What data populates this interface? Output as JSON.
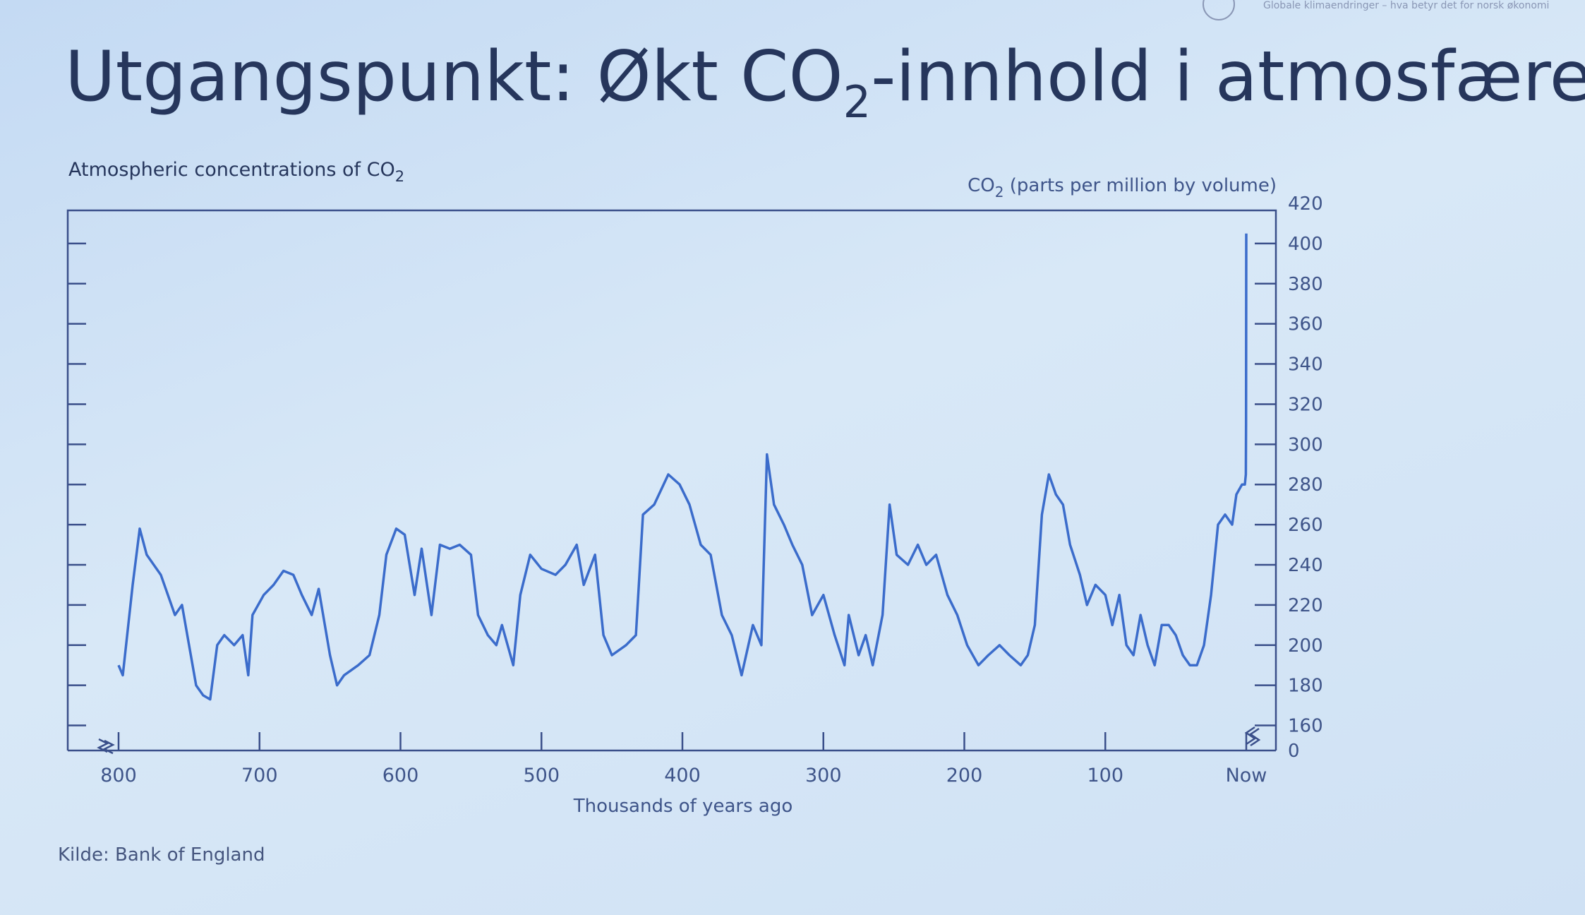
{
  "header_text": "Globale klimaendringer – hva betyr det for norsk økonomi",
  "slide_title": [
    "Utgangspunkt: Økt CO",
    "2",
    "-innhold i atmosfæren…"
  ],
  "source": "Kilde: Bank of England",
  "chart_data": {
    "type": "line",
    "title": [
      "Atmospheric concentrations of CO",
      "2"
    ],
    "y_label": [
      "CO",
      "2",
      " (parts per million by volume)"
    ],
    "x_label": "Thousands of years ago",
    "color": "#3b6ccb",
    "xlim": [
      800,
      0
    ],
    "xticks": [
      800,
      700,
      600,
      500,
      400,
      300,
      200,
      100,
      {
        "value": 0,
        "label": "Now"
      }
    ],
    "ylim": [
      0,
      420
    ],
    "axis_break": 150,
    "yticks": [
      0,
      160,
      180,
      200,
      220,
      240,
      260,
      280,
      300,
      320,
      340,
      360,
      380,
      400,
      420
    ],
    "x": [
      800,
      797,
      790,
      785,
      780,
      770,
      760,
      755,
      750,
      745,
      740,
      735,
      730,
      725,
      718,
      712,
      708,
      705,
      697,
      690,
      683,
      676,
      670,
      663,
      658,
      650,
      645,
      640,
      630,
      622,
      615,
      610,
      603,
      597,
      590,
      585,
      578,
      572,
      565,
      558,
      550,
      545,
      538,
      532,
      528,
      520,
      515,
      508,
      500,
      490,
      483,
      475,
      470,
      462,
      456,
      450,
      440,
      433,
      428,
      420,
      410,
      402,
      395,
      387,
      380,
      372,
      365,
      358,
      350,
      344,
      340,
      335,
      328,
      322,
      315,
      308,
      300,
      292,
      285,
      282,
      275,
      270,
      265,
      258,
      253,
      248,
      240,
      233,
      227,
      220,
      212,
      205,
      198,
      190,
      183,
      175,
      168,
      160,
      155,
      150,
      145,
      140,
      135,
      130,
      125,
      118,
      113,
      107,
      100,
      95,
      90,
      85,
      80,
      75,
      70,
      65,
      60,
      55,
      50,
      45,
      40,
      35,
      30,
      25,
      20,
      15,
      10,
      7,
      3,
      1,
      0.3,
      0.15,
      0.05,
      0
    ],
    "values": [
      190,
      185,
      230,
      258,
      245,
      235,
      215,
      220,
      200,
      180,
      175,
      173,
      200,
      205,
      200,
      205,
      185,
      215,
      225,
      230,
      237,
      235,
      225,
      215,
      228,
      195,
      180,
      185,
      190,
      195,
      215,
      245,
      258,
      255,
      225,
      248,
      215,
      250,
      248,
      250,
      245,
      215,
      205,
      200,
      210,
      190,
      225,
      245,
      238,
      235,
      240,
      250,
      230,
      245,
      205,
      195,
      200,
      205,
      265,
      270,
      285,
      280,
      270,
      250,
      245,
      215,
      205,
      185,
      210,
      200,
      295,
      270,
      260,
      250,
      240,
      215,
      225,
      205,
      190,
      215,
      195,
      205,
      190,
      215,
      270,
      245,
      240,
      250,
      240,
      245,
      225,
      215,
      200,
      190,
      195,
      200,
      195,
      190,
      195,
      210,
      265,
      285,
      275,
      270,
      250,
      235,
      220,
      230,
      225,
      210,
      225,
      200,
      195,
      215,
      200,
      190,
      210,
      210,
      205,
      195,
      190,
      190,
      200,
      225,
      260,
      265,
      260,
      275,
      280,
      280,
      285,
      310,
      370,
      405
    ]
  }
}
